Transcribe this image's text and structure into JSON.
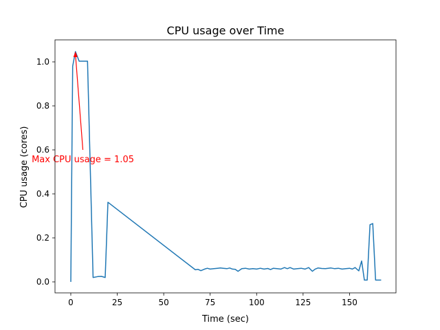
{
  "chart_data": {
    "type": "line",
    "title": "CPU usage over Time",
    "xlabel": "Time (sec)",
    "ylabel": "CPU usage (cores)",
    "xlim": [
      -8.5,
      175
    ],
    "ylim": [
      -0.05,
      1.1
    ],
    "xticks": [
      0,
      25,
      50,
      75,
      100,
      125,
      150
    ],
    "yticks": [
      0.0,
      0.2,
      0.4,
      0.6,
      0.8,
      1.0
    ],
    "grid": false,
    "series": [
      {
        "color": "#1f77b4",
        "x": [
          0,
          1,
          2.5,
          4.5,
          6.5,
          9,
          12,
          14.5,
          16.5,
          18.5,
          20,
          67,
          68.5,
          70,
          72,
          73.5,
          75,
          77,
          79,
          80.5,
          82,
          84,
          85.5,
          87,
          88.5,
          90,
          92,
          94,
          96,
          98,
          100,
          102,
          104,
          106,
          107.5,
          109,
          111,
          113,
          115,
          116.5,
          118,
          120,
          122,
          124,
          126,
          128,
          130,
          131.5,
          133,
          135,
          137,
          138.5,
          140,
          142,
          144,
          146,
          148,
          150,
          151.5,
          153,
          155,
          156.5,
          158,
          159.5,
          161,
          162.5,
          164,
          165.5,
          167
        ],
        "y": [
          0.0,
          0.98,
          1.047,
          1.003,
          1.003,
          1.003,
          0.02,
          0.024,
          0.025,
          0.02,
          0.362,
          0.055,
          0.057,
          0.051,
          0.058,
          0.062,
          0.058,
          0.06,
          0.062,
          0.063,
          0.062,
          0.06,
          0.063,
          0.058,
          0.057,
          0.048,
          0.06,
          0.062,
          0.058,
          0.06,
          0.058,
          0.062,
          0.058,
          0.061,
          0.056,
          0.062,
          0.06,
          0.058,
          0.065,
          0.06,
          0.065,
          0.058,
          0.06,
          0.062,
          0.058,
          0.065,
          0.048,
          0.058,
          0.063,
          0.061,
          0.06,
          0.062,
          0.063,
          0.06,
          0.062,
          0.058,
          0.06,
          0.062,
          0.058,
          0.065,
          0.05,
          0.095,
          0.008,
          0.008,
          0.26,
          0.265,
          0.008,
          0.008,
          0.008
        ]
      }
    ],
    "annotations": [
      {
        "text": "Max CPU usage = 1.05",
        "color": "#ff0000",
        "point": [
          2.5,
          1.047
        ],
        "text_pos": [
          6.5,
          0.6
        ]
      }
    ]
  }
}
